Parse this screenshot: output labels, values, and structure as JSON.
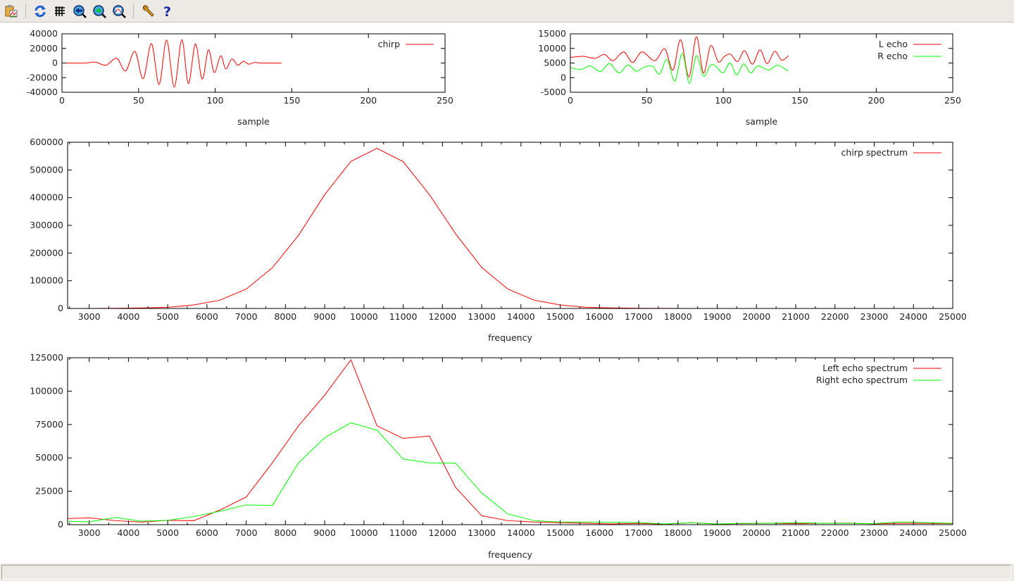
{
  "toolbar": {
    "icons": [
      "copy-to-clipboard-icon",
      "replot-icon",
      "grid-icon",
      "previous-zoom-icon",
      "next-zoom-icon",
      "autoscale-icon",
      "options-wrench-icon",
      "help-icon"
    ]
  },
  "colors": {
    "red": "#ff0000",
    "green": "#00ff00",
    "axis": "#000000"
  },
  "chart_data": [
    {
      "type": "line",
      "xlabel": "sample",
      "ylabel": "",
      "xlim": [
        0,
        250
      ],
      "ylim": [
        -40000,
        40000
      ],
      "xticks": [
        "0",
        "50",
        "100",
        "150",
        "200",
        "250"
      ],
      "yticks": [
        "-40000",
        "-20000",
        "0",
        "20000",
        "40000"
      ],
      "legend": "top-right",
      "series": [
        {
          "name": "chirp",
          "color": "#ff0000",
          "points": [
            [
              0,
              0
            ],
            [
              15,
              0
            ],
            [
              21.7,
              1300
            ],
            [
              28.8,
              -3000
            ],
            [
              35.7,
              6500
            ],
            [
              41.5,
              -10800
            ],
            [
              47.6,
              16000
            ],
            [
              53,
              -21500
            ],
            [
              58.4,
              26500
            ],
            [
              63.4,
              -29500
            ],
            [
              68.3,
              31500
            ],
            [
              73.3,
              -33000
            ],
            [
              78.2,
              32000
            ],
            [
              82.5,
              -28000
            ],
            [
              87.1,
              26000
            ],
            [
              91.5,
              -22000
            ],
            [
              95.6,
              18000
            ],
            [
              99.4,
              -13000
            ],
            [
              103.6,
              10000
            ],
            [
              106.9,
              -8000
            ],
            [
              110.9,
              5500
            ],
            [
              114.7,
              -3000
            ],
            [
              118.3,
              2300
            ],
            [
              121.9,
              -1500
            ],
            [
              125.7,
              800
            ],
            [
              130,
              0
            ],
            [
              143.4,
              0
            ]
          ]
        }
      ]
    },
    {
      "type": "line",
      "xlabel": "sample",
      "ylabel": "",
      "xlim": [
        0,
        250
      ],
      "ylim": [
        -5000,
        15000
      ],
      "xticks": [
        "0",
        "50",
        "100",
        "150",
        "200",
        "250"
      ],
      "yticks": [
        "-5000",
        "0",
        "5000",
        "10000",
        "15000"
      ],
      "legend": "top-right",
      "series": [
        {
          "name": "L echo",
          "color": "#ff0000",
          "points": [
            [
              0,
              6900
            ],
            [
              8.4,
              7300
            ],
            [
              16.1,
              6600
            ],
            [
              22.2,
              7950
            ],
            [
              27.9,
              5800
            ],
            [
              34.8,
              8800
            ],
            [
              40.7,
              5200
            ],
            [
              46.8,
              8800
            ],
            [
              55.2,
              5800
            ],
            [
              61.7,
              9800
            ],
            [
              67.1,
              2600
            ],
            [
              72.1,
              13000
            ],
            [
              77.5,
              250
            ],
            [
              82.4,
              14000
            ],
            [
              87,
              1600
            ],
            [
              91.8,
              11000
            ],
            [
              96.7,
              5400
            ],
            [
              100.6,
              7200
            ],
            [
              104.7,
              8000
            ],
            [
              109.3,
              5500
            ],
            [
              113.9,
              9200
            ],
            [
              119,
              4600
            ],
            [
              124,
              9500
            ],
            [
              128.6,
              4800
            ],
            [
              133.6,
              9000
            ],
            [
              138.1,
              6000
            ],
            [
              142.7,
              7500
            ]
          ]
        },
        {
          "name": "R echo",
          "color": "#00ff00",
          "points": [
            [
              0,
              3400
            ],
            [
              6.9,
              2800
            ],
            [
              13,
              4000
            ],
            [
              19.7,
              2100
            ],
            [
              25.6,
              4800
            ],
            [
              31.8,
              1600
            ],
            [
              37.6,
              4400
            ],
            [
              43,
              2200
            ],
            [
              48.3,
              3600
            ],
            [
              53.7,
              3850
            ],
            [
              58.3,
              1200
            ],
            [
              63.2,
              6200
            ],
            [
              68.3,
              -1200
            ],
            [
              73.2,
              8300
            ],
            [
              77.8,
              -2000
            ],
            [
              82.4,
              7500
            ],
            [
              87,
              550
            ],
            [
              91.6,
              4200
            ],
            [
              95,
              4000
            ],
            [
              99.8,
              1600
            ],
            [
              104.4,
              5000
            ],
            [
              108.7,
              1000
            ],
            [
              113.3,
              4650
            ],
            [
              117.9,
              1600
            ],
            [
              122.5,
              4000
            ],
            [
              129.7,
              2600
            ],
            [
              135.5,
              4250
            ],
            [
              142.4,
              2250
            ]
          ]
        }
      ]
    },
    {
      "type": "line",
      "xlabel": "frequency",
      "ylabel": "",
      "xlim": [
        2450,
        25000
      ],
      "ylim": [
        0,
        600000
      ],
      "xticks": [
        "3000",
        "4000",
        "5000",
        "6000",
        "7000",
        "8000",
        "9000",
        "10000",
        "11000",
        "12000",
        "13000",
        "14000",
        "15000",
        "16000",
        "17000",
        "18000",
        "19000",
        "20000",
        "21000",
        "22000",
        "23000",
        "24000",
        "25000"
      ],
      "yticks": [
        "0",
        "100000",
        "200000",
        "300000",
        "400000",
        "500000",
        "600000"
      ],
      "legend": "top-right",
      "series": [
        {
          "name": "chirp spectrum",
          "color": "#ff0000",
          "points": [
            [
              2333,
              0
            ],
            [
              3000,
              0
            ],
            [
              3667,
              600
            ],
            [
              4333,
              1800
            ],
            [
              5000,
              4200
            ],
            [
              5667,
              12600
            ],
            [
              6333,
              30000
            ],
            [
              7000,
              70000
            ],
            [
              7667,
              147000
            ],
            [
              8333,
              264000
            ],
            [
              9000,
              411000
            ],
            [
              9667,
              531000
            ],
            [
              10333,
              578000
            ],
            [
              11000,
              530000
            ],
            [
              11667,
              411000
            ],
            [
              12333,
              270000
            ],
            [
              13000,
              148000
            ],
            [
              13667,
              70000
            ],
            [
              14333,
              30000
            ],
            [
              15000,
              12600
            ],
            [
              15667,
              4200
            ],
            [
              16333,
              1800
            ],
            [
              17000,
              600
            ],
            [
              17667,
              200
            ],
            [
              18333,
              0
            ],
            [
              19000,
              0
            ],
            [
              19667,
              0
            ],
            [
              20333,
              0
            ],
            [
              21000,
              0
            ],
            [
              21667,
              0
            ],
            [
              22333,
              0
            ],
            [
              23000,
              0
            ],
            [
              23667,
              0
            ],
            [
              24333,
              0
            ],
            [
              25000,
              0
            ]
          ]
        }
      ]
    },
    {
      "type": "line",
      "xlabel": "frequency",
      "ylabel": "",
      "xlim": [
        2450,
        25000
      ],
      "ylim": [
        0,
        125000
      ],
      "xticks": [
        "3000",
        "4000",
        "5000",
        "6000",
        "7000",
        "8000",
        "9000",
        "10000",
        "11000",
        "12000",
        "13000",
        "14000",
        "15000",
        "16000",
        "17000",
        "18000",
        "19000",
        "20000",
        "21000",
        "22000",
        "23000",
        "24000",
        "25000"
      ],
      "yticks": [
        "0",
        "25000",
        "50000",
        "75000",
        "100000",
        "125000"
      ],
      "legend": "top-right",
      "series": [
        {
          "name": "Left echo spectrum",
          "color": "#ff0000",
          "points": [
            [
              2333,
              4400
            ],
            [
              3000,
              5100
            ],
            [
              3667,
              3000
            ],
            [
              4333,
              1900
            ],
            [
              5000,
              3200
            ],
            [
              5667,
              3000
            ],
            [
              6333,
              11000
            ],
            [
              7000,
              20700
            ],
            [
              7667,
              46300
            ],
            [
              8333,
              74000
            ],
            [
              9000,
              97000
            ],
            [
              9667,
              123500
            ],
            [
              10333,
              74000
            ],
            [
              11000,
              64600
            ],
            [
              11667,
              66400
            ],
            [
              12333,
              28000
            ],
            [
              13000,
              6700
            ],
            [
              13667,
              3000
            ],
            [
              14333,
              2000
            ],
            [
              15000,
              1500
            ],
            [
              15667,
              1000
            ],
            [
              16333,
              500
            ],
            [
              17000,
              1000
            ],
            [
              17667,
              300
            ],
            [
              18333,
              1500
            ],
            [
              19000,
              500
            ],
            [
              19667,
              800
            ],
            [
              20333,
              1000
            ],
            [
              21000,
              800
            ],
            [
              21667,
              1000
            ],
            [
              22333,
              1200
            ],
            [
              23000,
              600
            ],
            [
              23667,
              1000
            ],
            [
              24333,
              1000
            ],
            [
              25000,
              800
            ]
          ]
        },
        {
          "name": "Right echo spectrum",
          "color": "#00ff00",
          "points": [
            [
              2333,
              2600
            ],
            [
              3000,
              2100
            ],
            [
              3667,
              5400
            ],
            [
              4333,
              2600
            ],
            [
              5000,
              3200
            ],
            [
              5667,
              6100
            ],
            [
              6333,
              10000
            ],
            [
              7000,
              14800
            ],
            [
              7667,
              14400
            ],
            [
              8333,
              46300
            ],
            [
              9000,
              65100
            ],
            [
              9667,
              76300
            ],
            [
              10333,
              70700
            ],
            [
              11000,
              49100
            ],
            [
              11667,
              46300
            ],
            [
              12333,
              46100
            ],
            [
              13000,
              23700
            ],
            [
              13667,
              8000
            ],
            [
              14333,
              3000
            ],
            [
              15000,
              2000
            ],
            [
              15667,
              2000
            ],
            [
              16333,
              1800
            ],
            [
              17000,
              1500
            ],
            [
              17667,
              500
            ],
            [
              18333,
              1500
            ],
            [
              19000,
              500
            ],
            [
              19667,
              1000
            ],
            [
              20333,
              1000
            ],
            [
              21000,
              1500
            ],
            [
              21667,
              1000
            ],
            [
              22333,
              1000
            ],
            [
              23000,
              800
            ],
            [
              23667,
              2000
            ],
            [
              24333,
              1500
            ],
            [
              25000,
              1000
            ]
          ]
        }
      ]
    }
  ]
}
